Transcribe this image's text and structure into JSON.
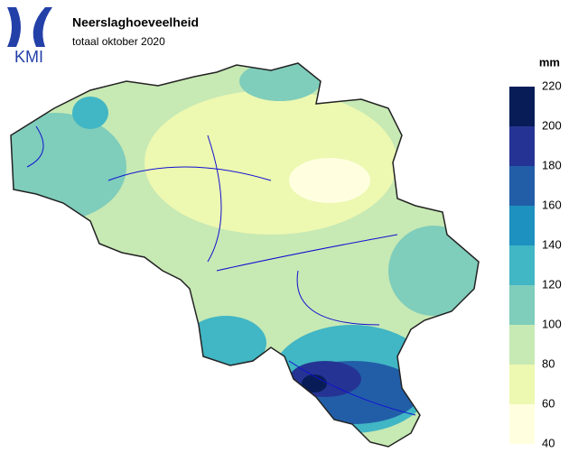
{
  "header": {
    "logo": "KMI",
    "title": "Neerslaghoeveelheid",
    "subtitle": "totaal oktober 2020"
  },
  "legend": {
    "unit": "mm",
    "ticks": [
      40,
      60,
      80,
      100,
      120,
      140,
      160,
      180,
      200,
      220
    ],
    "colors": [
      "#ffffe0",
      "#edf8b1",
      "#c7e9b4",
      "#7fcdbb",
      "#41b6c4",
      "#1d91c0",
      "#225ea8",
      "#253494",
      "#081d58"
    ]
  }
}
